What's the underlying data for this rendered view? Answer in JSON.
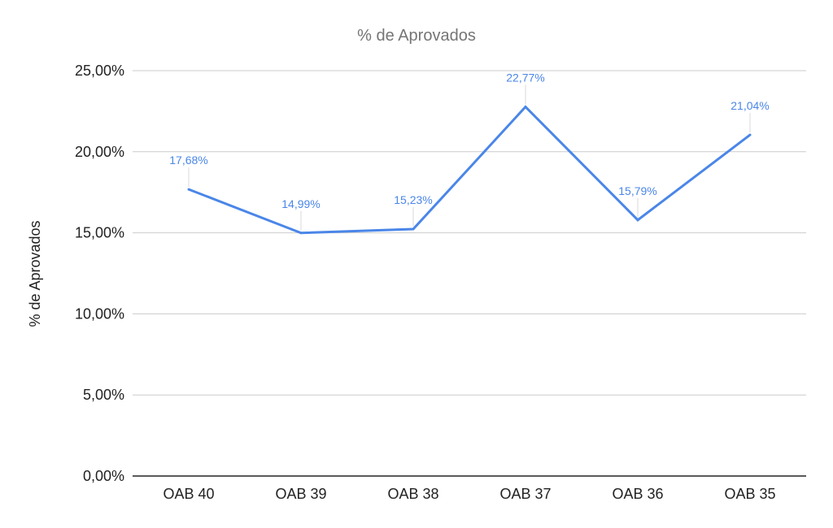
{
  "chart_data": {
    "type": "line",
    "title": "% de Aprovados",
    "xlabel": "",
    "ylabel": "% de Aprovados",
    "categories": [
      "OAB 40",
      "OAB 39",
      "OAB 38",
      "OAB 37",
      "OAB 36",
      "OAB 35"
    ],
    "series": [
      {
        "values": [
          17.68,
          14.99,
          15.23,
          22.77,
          15.79,
          21.04
        ],
        "labels": [
          "17,68%",
          "14,99%",
          "15,23%",
          "22,77%",
          "15,79%",
          "21,04%"
        ]
      }
    ],
    "ylim": [
      0,
      25
    ],
    "yticks": [
      0,
      5,
      10,
      15,
      20,
      25
    ],
    "ytick_labels": [
      "0,00%",
      "5,00%",
      "10,00%",
      "15,00%",
      "20,00%",
      "25,00%"
    ],
    "grid": true,
    "legend": "none",
    "colors": {
      "line": "#4a86e8",
      "data_label": "#4a86e8",
      "gridline": "#cccccc",
      "baseline": "#222222",
      "title": "#757575",
      "text": "#222222",
      "leader": "#d9d9d9"
    }
  }
}
